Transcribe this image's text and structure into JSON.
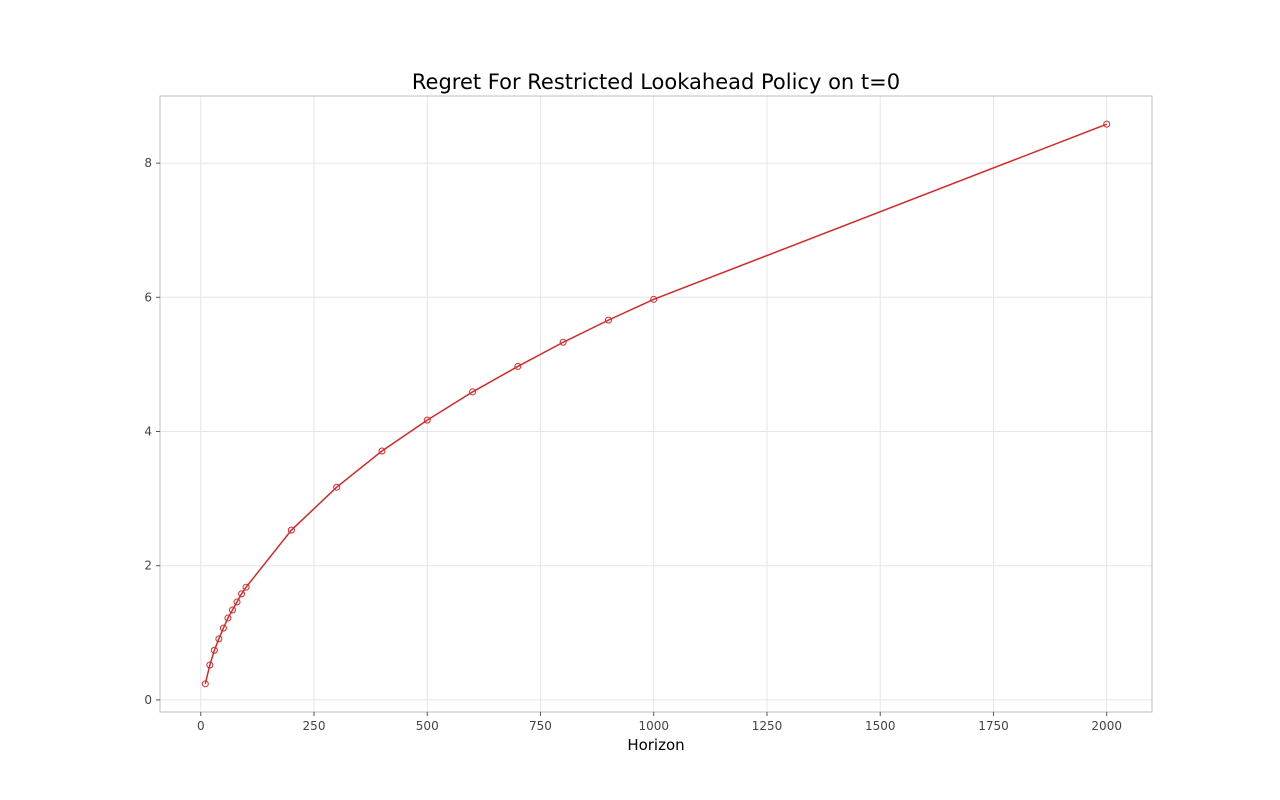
{
  "chart_data": {
    "type": "line",
    "title": "Regret For Restricted Lookahead Policy on t=0",
    "xlabel": "Horizon",
    "ylabel": "",
    "xlim": [
      -90,
      2100
    ],
    "ylim": [
      -0.18,
      9.0
    ],
    "xticks": [
      0,
      250,
      500,
      750,
      1000,
      1250,
      1500,
      1750,
      2000
    ],
    "yticks": [
      0,
      2,
      4,
      6,
      8
    ],
    "grid": true,
    "legend": "none",
    "series": [
      {
        "color": "#d62728",
        "marker": "open-circle",
        "x": [
          10,
          20,
          30,
          40,
          50,
          60,
          70,
          80,
          90,
          100,
          200,
          300,
          400,
          500,
          600,
          700,
          800,
          900,
          1000,
          2000
        ],
        "y": [
          0.24,
          0.52,
          0.74,
          0.91,
          1.07,
          1.22,
          1.34,
          1.46,
          1.58,
          1.68,
          2.53,
          3.17,
          3.71,
          4.17,
          4.59,
          4.97,
          5.33,
          5.66,
          5.97,
          8.58
        ]
      }
    ]
  }
}
